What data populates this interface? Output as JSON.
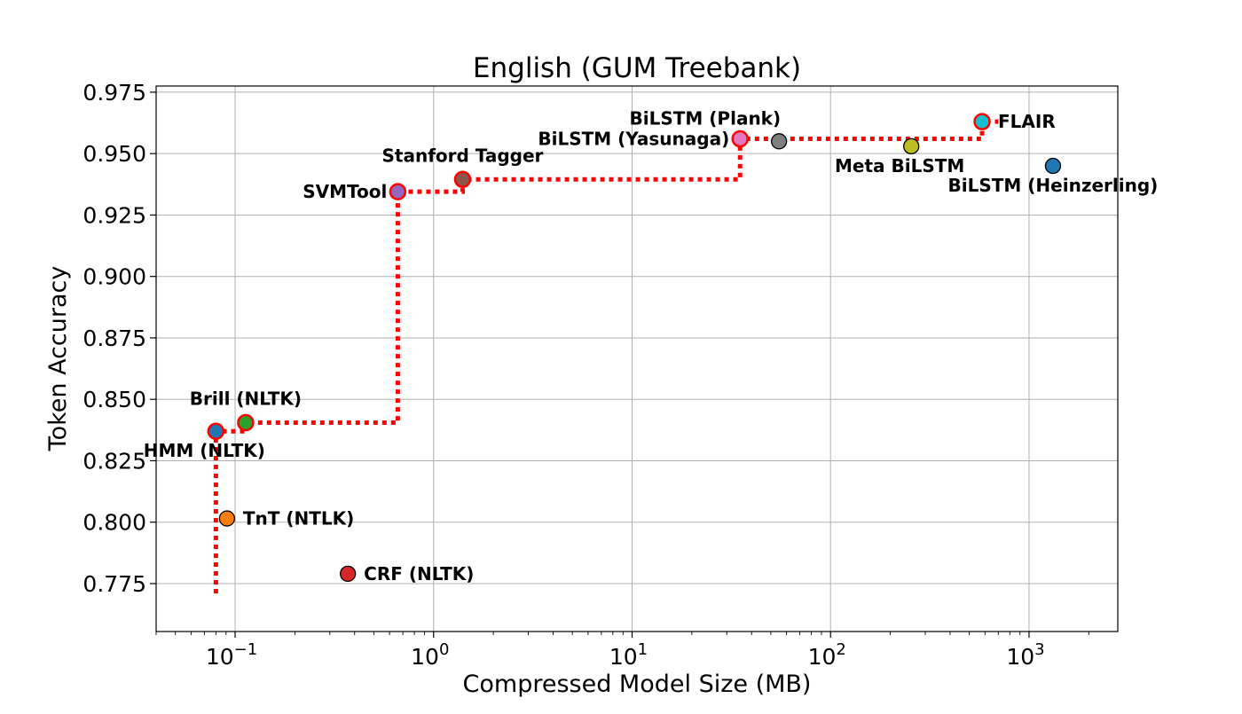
{
  "chart_data": {
    "type": "scatter",
    "title": "English (GUM Treebank)",
    "xlabel": "Compressed Model Size (MB)",
    "ylabel": "Token Accuracy",
    "xscale": "log",
    "xlim": [
      0.04,
      2800
    ],
    "ylim": [
      0.7555,
      0.9775
    ],
    "grid": true,
    "x_ticks": [
      {
        "value": 0.1,
        "base": "10",
        "exp": "−1"
      },
      {
        "value": 1,
        "base": "10",
        "exp": "0"
      },
      {
        "value": 10,
        "base": "10",
        "exp": "1"
      },
      {
        "value": 100,
        "base": "10",
        "exp": "2"
      },
      {
        "value": 1000,
        "base": "10",
        "exp": "3"
      }
    ],
    "y_ticks": [
      {
        "value": 0.775,
        "label": "0.775"
      },
      {
        "value": 0.8,
        "label": "0.800"
      },
      {
        "value": 0.825,
        "label": "0.825"
      },
      {
        "value": 0.85,
        "label": "0.850"
      },
      {
        "value": 0.875,
        "label": "0.875"
      },
      {
        "value": 0.9,
        "label": "0.900"
      },
      {
        "value": 0.925,
        "label": "0.925"
      },
      {
        "value": 0.95,
        "label": "0.950"
      },
      {
        "value": 0.975,
        "label": "0.975"
      }
    ],
    "points": [
      {
        "label": "HMM (NLTK)",
        "x": 0.08,
        "y": 0.837,
        "color": "#1f77b4",
        "pareto": true,
        "anchor": "below-left"
      },
      {
        "label": "Brill (NLTK)",
        "x": 0.113,
        "y": 0.8405,
        "color": "#2ca02c",
        "pareto": true,
        "anchor": "above"
      },
      {
        "label": "TnT (NTLK)",
        "x": 0.091,
        "y": 0.8015,
        "color": "#ff7f0e",
        "pareto": false,
        "anchor": "right"
      },
      {
        "label": "CRF (NLTK)",
        "x": 0.37,
        "y": 0.779,
        "color": "#d62728",
        "pareto": false,
        "anchor": "right"
      },
      {
        "label": "SVMTool",
        "x": 0.66,
        "y": 0.9345,
        "color": "#9467bd",
        "pareto": true,
        "anchor": "left"
      },
      {
        "label": "Stanford Tagger",
        "x": 1.4,
        "y": 0.9395,
        "color": "#8c564b",
        "pareto": true,
        "anchor": "above"
      },
      {
        "label": "BiLSTM (Yasunaga)",
        "x": 35,
        "y": 0.956,
        "color": "#e377c2",
        "pareto": true,
        "anchor": "left"
      },
      {
        "label": "BiLSTM (Plank)",
        "x": 55,
        "y": 0.955,
        "color": "#7f7f7f",
        "pareto": false,
        "anchor": "above-left"
      },
      {
        "label": "Meta BiLSTM",
        "x": 255,
        "y": 0.953,
        "color": "#bcbd22",
        "pareto": false,
        "anchor": "below-left"
      },
      {
        "label": "FLAIR",
        "x": 580,
        "y": 0.963,
        "color": "#17becf",
        "pareto": true,
        "anchor": "right"
      },
      {
        "label": "BiLSTM (Heinzerling)",
        "x": 1320,
        "y": 0.945,
        "color": "#1f77b4",
        "pareto": false,
        "anchor": "below-center"
      }
    ],
    "pareto_frontier": {
      "color": "#ff0000",
      "style": "dotted",
      "points": [
        [
          0.08,
          0.771
        ],
        [
          0.08,
          0.837
        ],
        [
          0.113,
          0.837
        ],
        [
          0.113,
          0.8405
        ],
        [
          0.66,
          0.8405
        ],
        [
          0.66,
          0.9345
        ],
        [
          1.4,
          0.9345
        ],
        [
          1.4,
          0.9395
        ],
        [
          35,
          0.9395
        ],
        [
          35,
          0.956
        ],
        [
          580,
          0.956
        ],
        [
          580,
          0.963
        ],
        [
          700,
          0.963
        ]
      ]
    }
  }
}
